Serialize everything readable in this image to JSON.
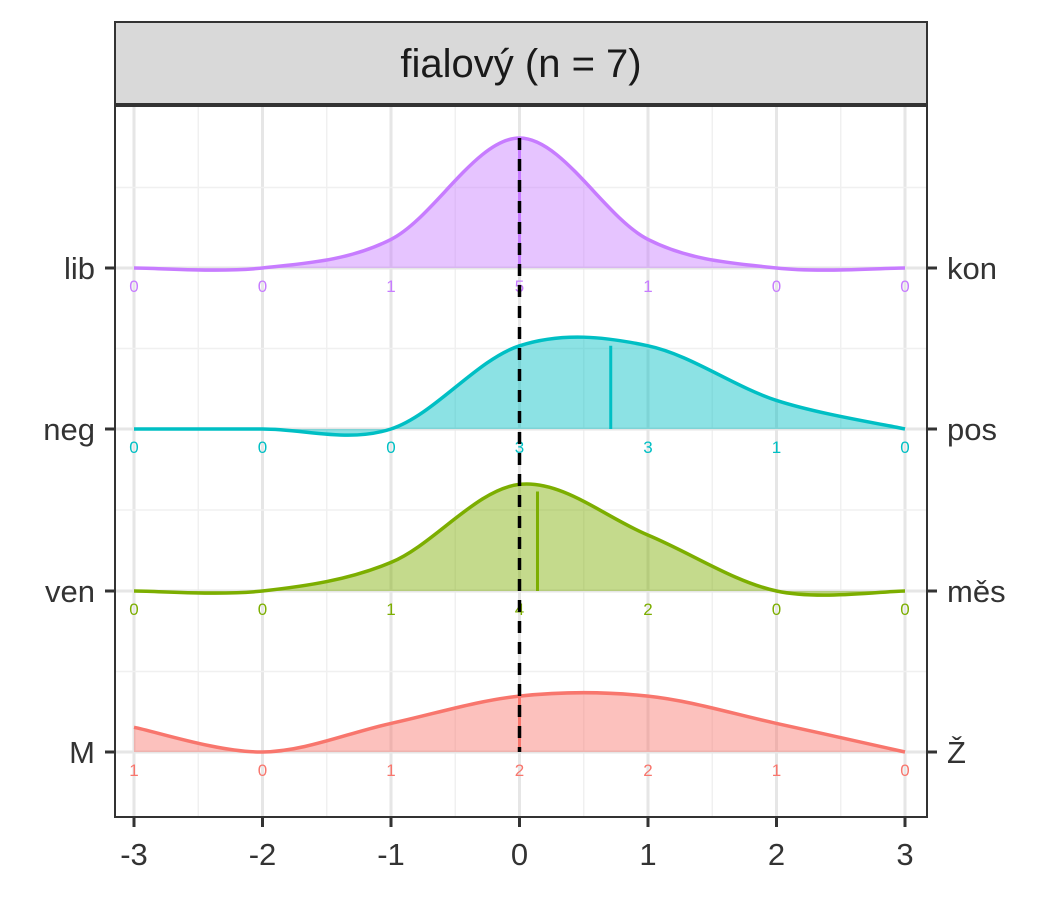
{
  "chart_data": {
    "type": "ridgeline",
    "title": "fialový (n = 7)",
    "xlim": [
      -3,
      3
    ],
    "x_ticks": [
      -3,
      -2,
      -1,
      0,
      1,
      2,
      3
    ],
    "x_tick_labels": [
      "-3",
      "-2",
      "-1",
      "0",
      "1",
      "2",
      "3"
    ],
    "reference_line": 0,
    "grid": true,
    "series": [
      {
        "left_label": "M",
        "right_label": "Ž",
        "color": "#f8766d",
        "counts": [
          1,
          0,
          1,
          2,
          2,
          1,
          0
        ],
        "mean": 0.0,
        "density": [
          0.19,
          0.0,
          0.22,
          0.43,
          0.43,
          0.22,
          0.0
        ]
      },
      {
        "left_label": "ven",
        "right_label": "měs",
        "color": "#7cae00",
        "counts": [
          0,
          0,
          1,
          4,
          2,
          0,
          0
        ],
        "mean": 0.14,
        "density": [
          0.0,
          0.0,
          0.22,
          0.82,
          0.43,
          0.0,
          0.0
        ]
      },
      {
        "left_label": "neg",
        "right_label": "pos",
        "color": "#00bfc4",
        "counts": [
          0,
          0,
          0,
          3,
          3,
          1,
          0
        ],
        "mean": 0.71,
        "density": [
          0.0,
          0.0,
          0.0,
          0.64,
          0.64,
          0.22,
          0.0
        ]
      },
      {
        "left_label": "lib",
        "right_label": "kon",
        "color": "#c77cff",
        "counts": [
          0,
          0,
          1,
          5,
          1,
          0,
          0
        ],
        "mean": 0.0,
        "density": [
          0.0,
          0.0,
          0.22,
          1.0,
          0.22,
          0.0,
          0.0
        ]
      }
    ]
  }
}
